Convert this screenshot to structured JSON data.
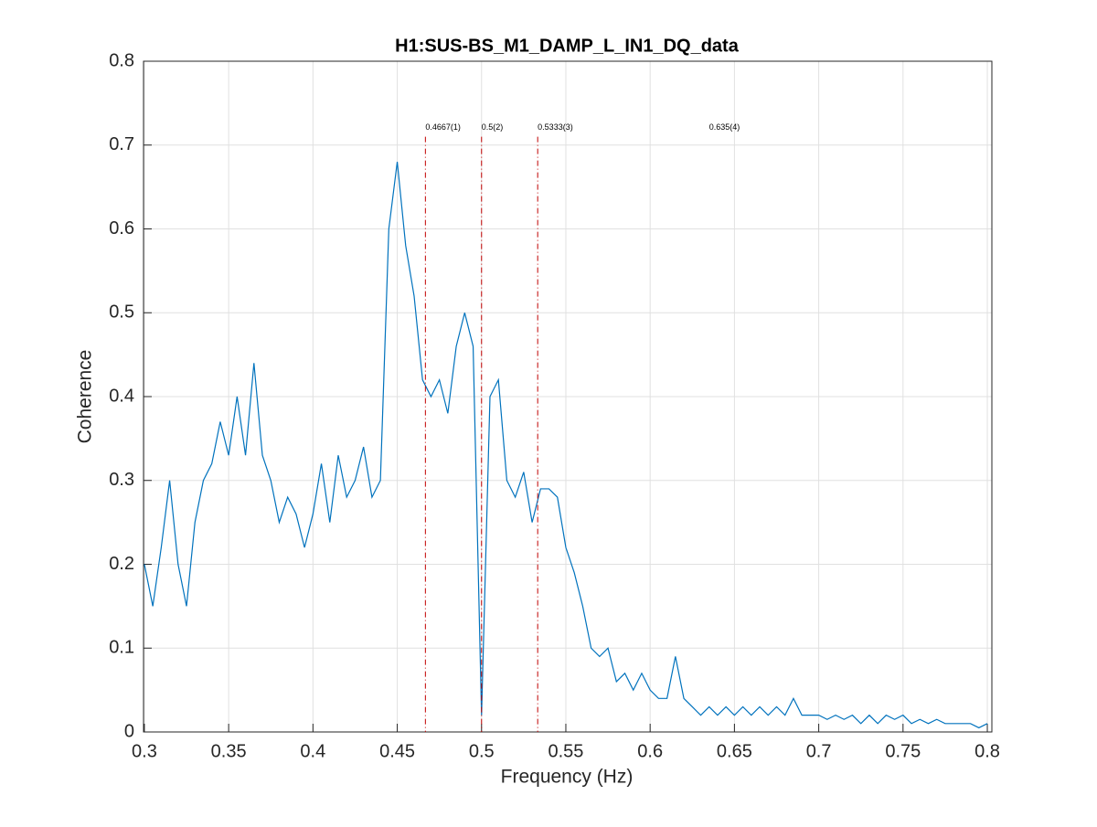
{
  "chart_data": {
    "type": "line",
    "title": "H1:SUS-BS_M1_DAMP_L_IN1_DQ_data",
    "xlabel": "Frequency (Hz)",
    "ylabel": "Coherence",
    "x": [
      0.3,
      0.305,
      0.31,
      0.315,
      0.32,
      0.325,
      0.33,
      0.335,
      0.34,
      0.345,
      0.35,
      0.355,
      0.36,
      0.365,
      0.37,
      0.375,
      0.38,
      0.385,
      0.39,
      0.395,
      0.4,
      0.405,
      0.41,
      0.415,
      0.42,
      0.425,
      0.43,
      0.435,
      0.44,
      0.445,
      0.45,
      0.455,
      0.46,
      0.465,
      0.47,
      0.475,
      0.48,
      0.485,
      0.49,
      0.495,
      0.5,
      0.505,
      0.51,
      0.515,
      0.52,
      0.525,
      0.53,
      0.535,
      0.54,
      0.545,
      0.55,
      0.555,
      0.56,
      0.565,
      0.57,
      0.575,
      0.58,
      0.585,
      0.59,
      0.595,
      0.6,
      0.605,
      0.61,
      0.615,
      0.62,
      0.625,
      0.63,
      0.635,
      0.64,
      0.645,
      0.65,
      0.655,
      0.66,
      0.665,
      0.67,
      0.675,
      0.68,
      0.685,
      0.69,
      0.695,
      0.7,
      0.705,
      0.71,
      0.715,
      0.72,
      0.725,
      0.73,
      0.735,
      0.74,
      0.745,
      0.75,
      0.755,
      0.76,
      0.765,
      0.77,
      0.775,
      0.78,
      0.785,
      0.79,
      0.795,
      0.8
    ],
    "series": [
      {
        "name": "H1:SUS-BS_M1_DAMP_L_IN1_DQ_data",
        "color": "#0072bd",
        "values": [
          0.2,
          0.15,
          0.22,
          0.3,
          0.2,
          0.15,
          0.25,
          0.3,
          0.32,
          0.37,
          0.33,
          0.4,
          0.33,
          0.44,
          0.33,
          0.3,
          0.25,
          0.28,
          0.26,
          0.22,
          0.26,
          0.32,
          0.25,
          0.33,
          0.28,
          0.3,
          0.34,
          0.28,
          0.3,
          0.6,
          0.68,
          0.58,
          0.52,
          0.42,
          0.4,
          0.42,
          0.38,
          0.46,
          0.5,
          0.46,
          0.02,
          0.4,
          0.42,
          0.3,
          0.28,
          0.31,
          0.25,
          0.29,
          0.29,
          0.28,
          0.22,
          0.19,
          0.15,
          0.1,
          0.09,
          0.1,
          0.06,
          0.07,
          0.05,
          0.07,
          0.05,
          0.04,
          0.04,
          0.09,
          0.04,
          0.03,
          0.02,
          0.03,
          0.02,
          0.03,
          0.02,
          0.03,
          0.02,
          0.03,
          0.02,
          0.03,
          0.02,
          0.04,
          0.02,
          0.02,
          0.02,
          0.015,
          0.02,
          0.015,
          0.02,
          0.01,
          0.02,
          0.01,
          0.02,
          0.015,
          0.02,
          0.01,
          0.015,
          0.01,
          0.015,
          0.01,
          0.01,
          0.01,
          0.01,
          0.005,
          0.01
        ]
      }
    ],
    "annotations": [
      {
        "x": 0.4667,
        "y": 0.71,
        "label": "0.4667(1)",
        "line": true
      },
      {
        "x": 0.5,
        "y": 0.71,
        "label": "0.5(2)",
        "line": true
      },
      {
        "x": 0.5333,
        "y": 0.71,
        "label": "0.5333(3)",
        "line": true
      },
      {
        "x": 0.635,
        "y": 0.71,
        "label": "0.635(4)",
        "line": false
      }
    ],
    "annotation_color": "#c00000",
    "xlim": [
      0.2995,
      0.8027
    ],
    "ylim": [
      0,
      0.8
    ],
    "xticks": [
      0.3,
      0.35,
      0.4,
      0.45,
      0.5,
      0.55,
      0.6,
      0.65,
      0.7,
      0.75,
      0.8
    ],
    "yticks": [
      0,
      0.1,
      0.2,
      0.3,
      0.4,
      0.5,
      0.6,
      0.7,
      0.8
    ],
    "grid": true
  }
}
